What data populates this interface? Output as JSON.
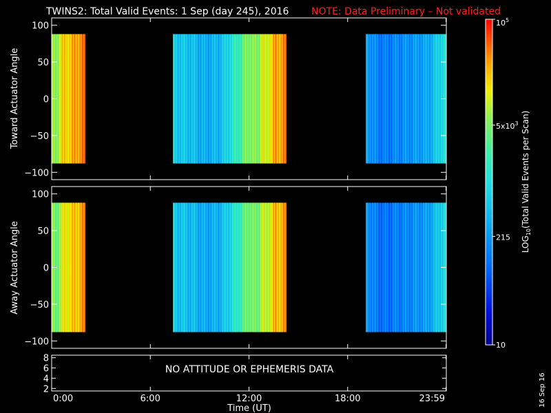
{
  "title": "TWINS2: Total Valid Events:  1 Sep (day 245), 2016",
  "note": "NOTE: Data Preliminary – Not validated",
  "colors": {
    "note": "#ff2020",
    "frame": "#ffffff",
    "background": "#000000"
  },
  "side_stamp": "16 Sep 16",
  "no_data_message": "NO ATTITUDE OR EPHEMERIS DATA",
  "chart_data": [
    {
      "type": "heatmap",
      "name": "toward",
      "ylabel": "Toward Actuator Angle",
      "ylim": [
        -110,
        110
      ],
      "yticks": [
        -100,
        -50,
        0,
        50,
        100
      ],
      "y_data_range": [
        -88,
        88
      ],
      "x_hours_range": [
        0,
        24
      ],
      "segments": [
        {
          "start": 0.0,
          "end": 2.05,
          "profile": [
            [
              0.0,
              0.72
            ],
            [
              0.2,
              0.66
            ],
            [
              0.55,
              0.78
            ],
            [
              0.85,
              0.82
            ],
            [
              1.2,
              0.83
            ],
            [
              1.6,
              0.88
            ],
            [
              2.05,
              0.89
            ]
          ]
        },
        {
          "start": 7.4,
          "end": 14.25,
          "profile": [
            [
              7.4,
              0.45
            ],
            [
              8.5,
              0.42
            ],
            [
              9.3,
              0.37
            ],
            [
              10.2,
              0.4
            ],
            [
              11.0,
              0.52
            ],
            [
              11.5,
              0.6
            ],
            [
              12.0,
              0.7
            ],
            [
              12.5,
              0.66
            ],
            [
              12.8,
              0.78
            ],
            [
              13.0,
              0.72
            ],
            [
              13.3,
              0.8
            ],
            [
              13.6,
              0.86
            ],
            [
              14.25,
              0.88
            ]
          ]
        },
        {
          "start": 19.1,
          "end": 24.0,
          "profile": [
            [
              19.1,
              0.38
            ],
            [
              19.6,
              0.3
            ],
            [
              20.2,
              0.27
            ],
            [
              21.0,
              0.3
            ],
            [
              22.0,
              0.33
            ],
            [
              22.8,
              0.36
            ],
            [
              23.3,
              0.42
            ],
            [
              23.7,
              0.5
            ],
            [
              24.0,
              0.5
            ]
          ]
        }
      ]
    },
    {
      "type": "heatmap",
      "name": "away",
      "ylabel": "Away Actuator Angle",
      "ylim": [
        -110,
        110
      ],
      "yticks": [
        -100,
        -50,
        0,
        50,
        100
      ],
      "y_data_range": [
        -88,
        88
      ],
      "x_hours_range": [
        0,
        24
      ],
      "segments": [
        {
          "start": 0.0,
          "end": 2.05,
          "profile": [
            [
              0.0,
              0.7
            ],
            [
              0.25,
              0.64
            ],
            [
              0.6,
              0.75
            ],
            [
              1.0,
              0.8
            ],
            [
              1.4,
              0.82
            ],
            [
              1.75,
              0.86
            ],
            [
              2.05,
              0.87
            ]
          ]
        },
        {
          "start": 7.4,
          "end": 14.25,
          "profile": [
            [
              7.4,
              0.44
            ],
            [
              8.5,
              0.41
            ],
            [
              9.3,
              0.36
            ],
            [
              10.2,
              0.39
            ],
            [
              11.0,
              0.5
            ],
            [
              11.5,
              0.58
            ],
            [
              12.0,
              0.68
            ],
            [
              12.5,
              0.64
            ],
            [
              12.8,
              0.76
            ],
            [
              13.0,
              0.7
            ],
            [
              13.3,
              0.78
            ],
            [
              13.6,
              0.84
            ],
            [
              14.25,
              0.86
            ]
          ]
        },
        {
          "start": 19.1,
          "end": 24.0,
          "profile": [
            [
              19.1,
              0.36
            ],
            [
              19.6,
              0.28
            ],
            [
              20.2,
              0.25
            ],
            [
              21.0,
              0.28
            ],
            [
              22.0,
              0.31
            ],
            [
              22.8,
              0.34
            ],
            [
              23.3,
              0.4
            ],
            [
              23.7,
              0.48
            ],
            [
              24.0,
              0.48
            ]
          ]
        }
      ]
    },
    {
      "type": "line",
      "name": "ephemeris",
      "ylim": [
        1.5,
        8.5
      ],
      "yticks": [
        2,
        4,
        6,
        8
      ]
    }
  ],
  "x_axis": {
    "label": "Time (UT)",
    "xlim_hours": [
      0,
      24
    ],
    "ticks": [
      {
        "hour": 0,
        "label": "0:00"
      },
      {
        "hour": 6,
        "label": "6:00"
      },
      {
        "hour": 12,
        "label": "12:00"
      },
      {
        "hour": 18,
        "label": "18:00"
      },
      {
        "hour": 23.983,
        "label": "23:59"
      }
    ]
  },
  "colorbar": {
    "label_prefix": "LOG",
    "label_sub": "10",
    "label_suffix": "(Total Valid Events per Scan)",
    "range": [
      10,
      100000
    ],
    "ticks": [
      {
        "value": 100000,
        "mantissa": "",
        "base": "10",
        "exp": "5"
      },
      {
        "value": 5000,
        "mantissa": "5x",
        "base": "10",
        "exp": "3"
      },
      {
        "value": 215,
        "mantissa": "",
        "base": "215",
        "exp": ""
      },
      {
        "value": 10,
        "mantissa": "",
        "base": "10",
        "exp": ""
      }
    ]
  }
}
